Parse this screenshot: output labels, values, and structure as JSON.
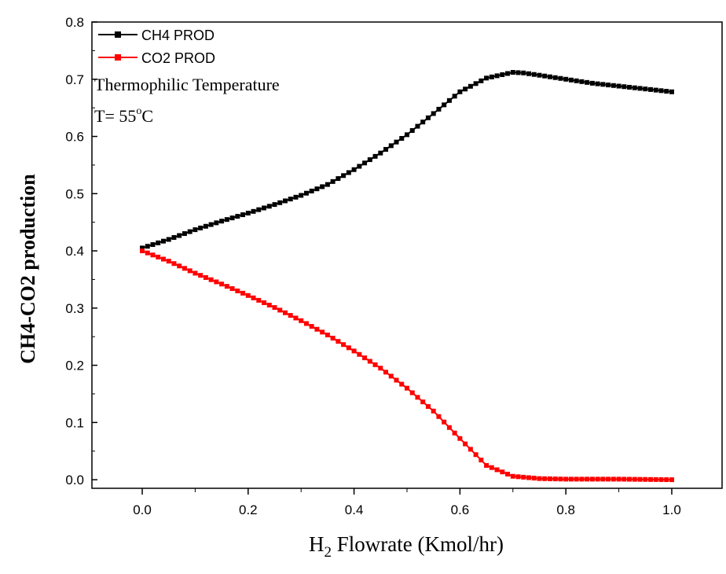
{
  "chart_data": {
    "type": "line",
    "xlabel": "H2 Flowrate (Kmol/hr)",
    "xlabel_main": "H",
    "xlabel_sub": "2",
    "xlabel_rest": " Flowrate (Kmol/hr)",
    "ylabel": "CH4-CO2 production",
    "xlim": [
      -0.095,
      1.095
    ],
    "ylim": [
      -0.015,
      0.8
    ],
    "xticks": [
      "0.0",
      "0.2",
      "0.4",
      "0.6",
      "0.8",
      "1.0"
    ],
    "yticks": [
      "0.0",
      "0.1",
      "0.2",
      "0.3",
      "0.4",
      "0.5",
      "0.6",
      "0.7",
      "0.8"
    ],
    "legend_position": "top-left",
    "annotations": [
      "Thermophilic Temperature",
      "T= 55",
      "o",
      "C"
    ],
    "series": [
      {
        "name": "CH4 PROD",
        "color": "#000000",
        "marker": "square",
        "points": [
          [
            0.0,
            0.405
          ],
          [
            0.05,
            0.42
          ],
          [
            0.1,
            0.437
          ],
          [
            0.15,
            0.452
          ],
          [
            0.2,
            0.466
          ],
          [
            0.25,
            0.481
          ],
          [
            0.3,
            0.497
          ],
          [
            0.35,
            0.516
          ],
          [
            0.4,
            0.542
          ],
          [
            0.45,
            0.571
          ],
          [
            0.5,
            0.603
          ],
          [
            0.55,
            0.64
          ],
          [
            0.6,
            0.678
          ],
          [
            0.65,
            0.702
          ],
          [
            0.7,
            0.712
          ],
          [
            0.72,
            0.711
          ],
          [
            0.75,
            0.707
          ],
          [
            0.8,
            0.7
          ],
          [
            0.85,
            0.693
          ],
          [
            0.9,
            0.688
          ],
          [
            0.95,
            0.683
          ],
          [
            1.0,
            0.678
          ]
        ]
      },
      {
        "name": "CO2 PROD",
        "color": "#ff0000",
        "marker": "square",
        "points": [
          [
            0.0,
            0.4
          ],
          [
            0.05,
            0.382
          ],
          [
            0.1,
            0.361
          ],
          [
            0.15,
            0.342
          ],
          [
            0.2,
            0.322
          ],
          [
            0.25,
            0.301
          ],
          [
            0.3,
            0.278
          ],
          [
            0.35,
            0.253
          ],
          [
            0.4,
            0.225
          ],
          [
            0.45,
            0.195
          ],
          [
            0.5,
            0.16
          ],
          [
            0.55,
            0.12
          ],
          [
            0.6,
            0.072
          ],
          [
            0.65,
            0.025
          ],
          [
            0.7,
            0.006
          ],
          [
            0.75,
            0.002
          ],
          [
            0.8,
            0.001
          ],
          [
            0.9,
            0.001
          ],
          [
            1.0,
            0.0
          ]
        ]
      }
    ]
  }
}
